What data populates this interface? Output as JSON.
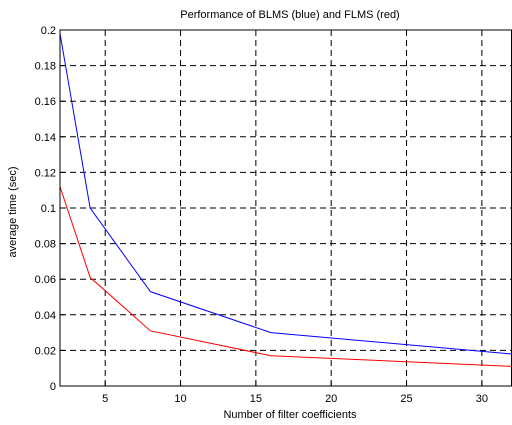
{
  "chart_data": {
    "type": "line",
    "title": "Performance of BLMS (blue) and FLMS (red)",
    "xlabel": "Number of filter coefficients",
    "ylabel": "average time (sec)",
    "xlim": [
      2,
      32
    ],
    "ylim": [
      0,
      0.2
    ],
    "xticks": [
      5,
      10,
      15,
      20,
      25,
      30
    ],
    "yticks": [
      0,
      0.02,
      0.04,
      0.06,
      0.08,
      0.1,
      0.12,
      0.14,
      0.16,
      0.18,
      0.2
    ],
    "xtick_labels": [
      "5",
      "10",
      "15",
      "20",
      "25",
      "30"
    ],
    "ytick_labels": [
      "0",
      "0.02",
      "0.04",
      "0.06",
      "0.08",
      "0.1",
      "0.12",
      "0.14",
      "0.16",
      "0.18",
      "0.2"
    ],
    "grid": true,
    "grid_style": "dashed",
    "series": [
      {
        "color": "#0000ff",
        "x": [
          2,
          4,
          8,
          16,
          32
        ],
        "values": [
          0.198,
          0.1,
          0.053,
          0.03,
          0.018
        ]
      },
      {
        "color": "#ff0000",
        "x": [
          2,
          4,
          8,
          16,
          32
        ],
        "values": [
          0.112,
          0.061,
          0.031,
          0.017,
          0.011
        ]
      }
    ]
  }
}
